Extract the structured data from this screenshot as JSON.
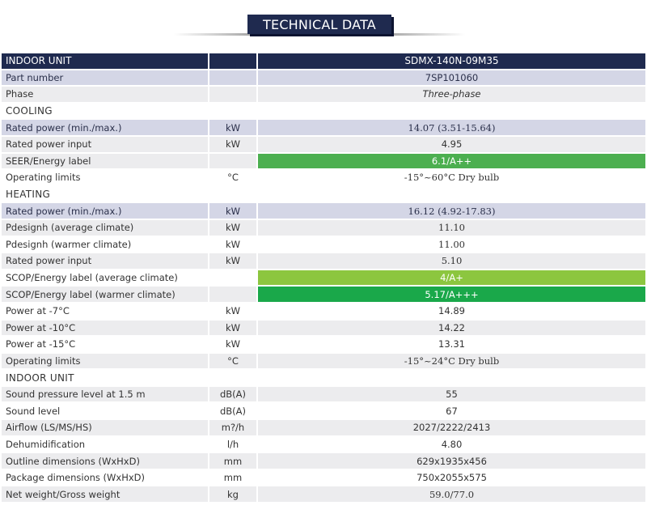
{
  "title": "TECHNICAL DATA",
  "colors": {
    "header_navy": "#1f2a4f",
    "lavender_row": "#d4d6e6",
    "grey_row": "#ececee",
    "green_a_plus_plus": "#4caf50",
    "green_a_plus": "#8cc63f",
    "green_a_plus_plus_plus": "#1aa84a"
  },
  "header": {
    "label": "INDOOR UNIT",
    "unit": "",
    "model": "SDMX-140N-09M35"
  },
  "general": [
    {
      "label": "Part number",
      "unit": "",
      "value": "7SP101060"
    },
    {
      "label": "Phase",
      "unit": "",
      "value": "Three-phase"
    }
  ],
  "cooling": {
    "section": "COOLING",
    "rows": [
      {
        "label": "Rated power (min./max.)",
        "unit": "kW",
        "value": "14.07 (3.51-15.64)"
      },
      {
        "label": "Rated power input",
        "unit": "kW",
        "value": "4.95"
      },
      {
        "label": "SEER/Energy label",
        "unit": "",
        "value": "6.1/A++"
      },
      {
        "label": "Operating limits",
        "unit": "°C",
        "value": "-15°~60°C Dry bulb"
      }
    ]
  },
  "heating": {
    "section": "HEATING",
    "rows": [
      {
        "label": "Rated power (min./max.)",
        "unit": "kW",
        "value": "16.12 (4.92-17.83)"
      },
      {
        "label": "Pdesignh (average climate)",
        "unit": "kW",
        "value": "11.10"
      },
      {
        "label": "Pdesignh (warmer climate)",
        "unit": "kW",
        "value": "11.00"
      },
      {
        "label": "Rated power input",
        "unit": "kW",
        "value": "5.10"
      },
      {
        "label": "SCOP/Energy label (average climate)",
        "unit": "",
        "value": "4/A+"
      },
      {
        "label": "SCOP/Energy label (warmer climate)",
        "unit": "",
        "value": "5.17/A+++"
      },
      {
        "label": "Power at -7°C",
        "unit": "kW",
        "value": "14.89"
      },
      {
        "label": "Power at -10°C",
        "unit": "kW",
        "value": "14.22"
      },
      {
        "label": "Power at -15°C",
        "unit": "kW",
        "value": "13.31"
      },
      {
        "label": "Operating limits",
        "unit": "°C",
        "value": "-15°~24°C Dry bulb"
      }
    ]
  },
  "indoor": {
    "section": "INDOOR UNIT",
    "rows": [
      {
        "label": "Sound pressure level at 1.5 m",
        "unit": "dB(A)",
        "value": "55"
      },
      {
        "label": "Sound level",
        "unit": "dB(A)",
        "value": "67"
      },
      {
        "label": "Airflow (LS/MS/HS)",
        "unit": "m?/h",
        "value": "2027/2222/2413"
      },
      {
        "label": "Dehumidification",
        "unit": "l/h",
        "value": "4.80"
      },
      {
        "label": "Outline dimensions (WxHxD)",
        "unit": "mm",
        "value": "629x1935x456"
      },
      {
        "label": "Package dimensions (WxHxD)",
        "unit": "mm",
        "value": "750x2055x575"
      },
      {
        "label": "Net weight/Gross weight",
        "unit": "kg",
        "value": "59.0/77.0"
      }
    ]
  }
}
